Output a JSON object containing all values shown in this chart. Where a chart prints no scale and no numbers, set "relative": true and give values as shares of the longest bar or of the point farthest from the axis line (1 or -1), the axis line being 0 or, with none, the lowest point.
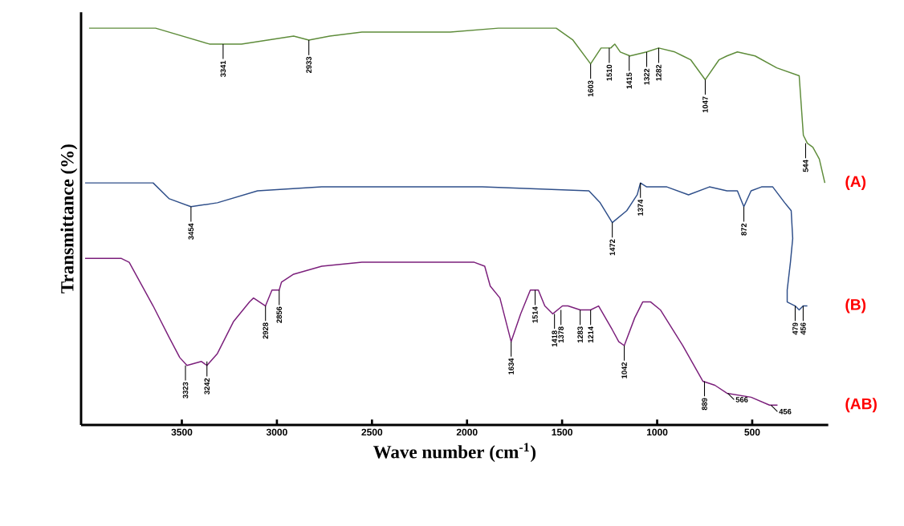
{
  "chart_data": {
    "type": "line",
    "relative": true,
    "xlabel": "Wave number (cm$^{-1}$)",
    "ylabel": "Transmittance (%)",
    "xlim": [
      4030,
      100
    ],
    "xticks": [
      3500,
      3000,
      2500,
      2000,
      1500,
      1000,
      500
    ],
    "series": [
      {
        "name": "(A)",
        "color": "#5e8c3a",
        "x": [
          3988,
          3638,
          3355,
          3283,
          3186,
          2912,
          2832,
          2722,
          2553,
          2342,
          2089,
          1835,
          1531,
          1443,
          1350,
          1295,
          1266,
          1244,
          1223,
          1194,
          1143,
          1055,
          992,
          907,
          865,
          823,
          747,
          675,
          633,
          578,
          485,
          371,
          253,
          231,
          210,
          181,
          147,
          118
        ],
        "values": [
          1.0,
          1.0,
          0.96,
          0.96,
          0.96,
          0.98,
          0.97,
          0.98,
          0.99,
          0.99,
          0.99,
          1.0,
          1.0,
          0.97,
          0.91,
          0.95,
          0.95,
          0.95,
          0.96,
          0.94,
          0.93,
          0.94,
          0.95,
          0.94,
          0.93,
          0.92,
          0.87,
          0.92,
          0.93,
          0.94,
          0.93,
          0.9,
          0.88,
          0.73,
          0.71,
          0.7,
          0.67,
          0.61
        ]
      },
      {
        "name": "(B)",
        "color": "#2f4f8a",
        "x": [
          4009,
          3651,
          3566,
          3452,
          3313,
          3102,
          2764,
          1920,
          1359,
          1300,
          1236,
          1160,
          1105,
          1088,
          1055,
          949,
          835,
          725,
          633,
          578,
          544,
          506,
          451,
          392,
          329,
          295,
          287,
          299,
          316,
          316,
          274,
          253,
          232,
          210
        ],
        "values": [
          0.61,
          0.61,
          0.57,
          0.55,
          0.56,
          0.59,
          0.6,
          0.6,
          0.59,
          0.56,
          0.51,
          0.54,
          0.58,
          0.61,
          0.6,
          0.6,
          0.58,
          0.6,
          0.59,
          0.59,
          0.55,
          0.59,
          0.6,
          0.6,
          0.56,
          0.54,
          0.47,
          0.41,
          0.34,
          0.31,
          0.3,
          0.29,
          0.3,
          0.3
        ]
      },
      {
        "name": "(AB)",
        "color": "#7b1f7b",
        "x": [
          4009,
          3820,
          3777,
          3651,
          3566,
          3511,
          3473,
          3397,
          3368,
          3313,
          3229,
          3144,
          3123,
          3060,
          3026,
          2988,
          2976,
          2912,
          2764,
          2553,
          2342,
          2089,
          1962,
          1907,
          1878,
          1827,
          1768,
          1718,
          1667,
          1646,
          1625,
          1591,
          1549,
          1498,
          1469,
          1405,
          1350,
          1308,
          1236,
          1202,
          1173,
          1118,
          1076,
          1034,
          983,
          865,
          759,
          696,
          633,
          506,
          409,
          367
        ],
        "values": [
          0.42,
          0.42,
          0.41,
          0.3,
          0.22,
          0.17,
          0.15,
          0.16,
          0.15,
          0.18,
          0.26,
          0.31,
          0.32,
          0.3,
          0.34,
          0.34,
          0.36,
          0.38,
          0.4,
          0.41,
          0.41,
          0.41,
          0.41,
          0.4,
          0.35,
          0.32,
          0.21,
          0.28,
          0.34,
          0.34,
          0.34,
          0.3,
          0.28,
          0.3,
          0.3,
          0.29,
          0.29,
          0.3,
          0.24,
          0.21,
          0.2,
          0.27,
          0.31,
          0.31,
          0.29,
          0.2,
          0.11,
          0.1,
          0.08,
          0.07,
          0.05,
          0.05
        ]
      }
    ],
    "annotations": [
      {
        "text": "3341",
        "x": 3283,
        "y": 0.96
      },
      {
        "text": "2933",
        "x": 2832,
        "y": 0.97
      },
      {
        "text": "1603",
        "x": 1350,
        "y": 0.91
      },
      {
        "text": "1510",
        "x": 1252,
        "y": 0.95
      },
      {
        "text": "1415",
        "x": 1147,
        "y": 0.93
      },
      {
        "text": "1322",
        "x": 1055,
        "y": 0.94
      },
      {
        "text": "1282",
        "x": 992,
        "y": 0.95
      },
      {
        "text": "1047",
        "x": 747,
        "y": 0.87
      },
      {
        "text": "544",
        "x": 219,
        "y": 0.71
      },
      {
        "text": "3454",
        "x": 3452,
        "y": 0.55
      },
      {
        "text": "1472",
        "x": 1236,
        "y": 0.51
      },
      {
        "text": "1374",
        "x": 1088,
        "y": 0.61
      },
      {
        "text": "872",
        "x": 544,
        "y": 0.55
      },
      {
        "text": "479",
        "x": 274,
        "y": 0.3
      },
      {
        "text": "456",
        "x": 232,
        "y": 0.3
      },
      {
        "text": "3323",
        "x": 3481,
        "y": 0.15
      },
      {
        "text": "3242",
        "x": 3368,
        "y": 0.16
      },
      {
        "text": "2928",
        "x": 3060,
        "y": 0.3
      },
      {
        "text": "2856",
        "x": 2988,
        "y": 0.34
      },
      {
        "text": "1634",
        "x": 1768,
        "y": 0.21
      },
      {
        "text": "1514",
        "x": 1642,
        "y": 0.34
      },
      {
        "text": "1418",
        "x": 1540,
        "y": 0.28
      },
      {
        "text": "1378",
        "x": 1506,
        "y": 0.29
      },
      {
        "text": "1283",
        "x": 1405,
        "y": 0.29
      },
      {
        "text": "1214",
        "x": 1350,
        "y": 0.29
      },
      {
        "text": "1042",
        "x": 1173,
        "y": 0.2
      },
      {
        "text": "889",
        "x": 751,
        "y": 0.11
      },
      {
        "text": "566",
        "x": 629,
        "y": 0.08
      },
      {
        "text": "456",
        "x": 401,
        "y": 0.05
      }
    ]
  }
}
